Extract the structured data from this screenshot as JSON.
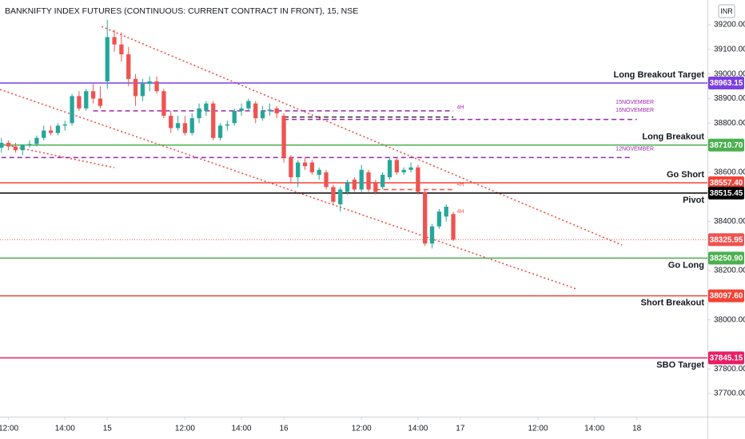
{
  "chart_data": {
    "type": "candlestick",
    "title": "BANKNIFTY INDEX FUTURES (CONTINUOUS: CURRENT CONTRACT IN FRONT), 15, NSE",
    "currency": "INR",
    "up_color": "#26a69a",
    "down_color": "#ef5350",
    "grid": false,
    "x": [
      -15,
      -14,
      -13,
      -12,
      -11,
      -10,
      -9,
      -8,
      -7,
      -6,
      -5,
      -4,
      -3,
      -2,
      -1,
      0,
      1,
      2,
      3,
      4,
      5,
      6,
      7,
      8,
      9,
      10,
      11,
      12,
      13,
      14,
      15,
      16,
      17,
      18,
      19,
      20,
      21,
      22,
      23,
      24,
      25,
      26,
      27,
      28,
      29,
      30,
      31,
      32,
      33,
      34,
      35,
      36,
      37,
      38,
      39,
      40,
      41,
      42,
      43,
      44,
      45,
      46,
      47,
      48,
      49
    ],
    "open": [
      38700,
      38720,
      38705,
      38690,
      38710,
      38715,
      38740,
      38770,
      38760,
      38790,
      38800,
      38910,
      38860,
      38930,
      38900,
      38970,
      39150,
      39120,
      39080,
      38980,
      38910,
      38960,
      38970,
      38930,
      38830,
      38780,
      38800,
      38760,
      38820,
      38850,
      38880,
      38740,
      38790,
      38800,
      38850,
      38860,
      38880,
      38820,
      38850,
      38860,
      38830,
      38660,
      38580,
      38640,
      38640,
      38590,
      38600,
      38540,
      38470,
      38520,
      38570,
      38530,
      38600,
      38560,
      38540,
      38580,
      38650,
      38600,
      38610,
      38620,
      38520,
      38310,
      38380,
      38420,
      38430
    ],
    "high": [
      38740,
      38730,
      38720,
      38715,
      38730,
      38750,
      38790,
      38790,
      38800,
      38810,
      38920,
      38930,
      38940,
      38960,
      38950,
      39220,
      39180,
      39170,
      39110,
      39000,
      38980,
      38990,
      38990,
      38940,
      38850,
      38830,
      38830,
      38840,
      38880,
      38890,
      38890,
      38800,
      38810,
      38860,
      38880,
      38900,
      38890,
      38870,
      38880,
      38870,
      38840,
      38670,
      38650,
      38660,
      38650,
      38620,
      38610,
      38550,
      38540,
      38570,
      38580,
      38630,
      38610,
      38570,
      38600,
      38660,
      38660,
      38620,
      38640,
      38630,
      38530,
      38390,
      38450,
      38470,
      38440
    ],
    "low": [
      38680,
      38690,
      38680,
      38670,
      38700,
      38705,
      38730,
      38750,
      38750,
      38770,
      38790,
      38850,
      38850,
      38880,
      38860,
      38940,
      39090,
      39050,
      38950,
      38870,
      38890,
      38930,
      38920,
      38820,
      38760,
      38770,
      38750,
      38750,
      38800,
      38830,
      38730,
      38730,
      38770,
      38790,
      38830,
      38850,
      38800,
      38810,
      38830,
      38820,
      38640,
      38560,
      38540,
      38610,
      38590,
      38570,
      38530,
      38470,
      38440,
      38510,
      38520,
      38520,
      38520,
      38510,
      38530,
      38570,
      38590,
      38590,
      38600,
      38510,
      38300,
      38290,
      38370,
      38400,
      38320
    ],
    "close": [
      38720,
      38705,
      38690,
      38710,
      38715,
      38740,
      38770,
      38760,
      38790,
      38795,
      38910,
      38860,
      38930,
      38900,
      38870,
      39150,
      39120,
      39080,
      38980,
      38910,
      38960,
      38970,
      38930,
      38830,
      38780,
      38800,
      38760,
      38820,
      38860,
      38880,
      38740,
      38790,
      38795,
      38850,
      38860,
      38890,
      38820,
      38850,
      38855,
      38840,
      38660,
      38580,
      38640,
      38625,
      38600,
      38610,
      38540,
      38480,
      38530,
      38560,
      38530,
      38610,
      38530,
      38520,
      38590,
      38650,
      38600,
      38610,
      38620,
      38520,
      38310,
      38380,
      38440,
      38460,
      38326
    ],
    "xlim": [
      -15.2,
      85
    ],
    "ylim": [
      37606,
      39301
    ],
    "xticks": [
      {
        "value": -14,
        "label": "12:00"
      },
      {
        "value": -6,
        "label": "14:00"
      },
      {
        "value": 0,
        "label": "15"
      },
      {
        "value": 11,
        "label": "12:00"
      },
      {
        "value": 19,
        "label": "14:00"
      },
      {
        "value": 25,
        "label": "16"
      },
      {
        "value": 36,
        "label": "12:00"
      },
      {
        "value": 44,
        "label": "14:00"
      },
      {
        "value": 50,
        "label": "17"
      },
      {
        "value": 61,
        "label": "12:00"
      },
      {
        "value": 69,
        "label": "14:00"
      },
      {
        "value": 75,
        "label": "18"
      }
    ],
    "yticks": [
      {
        "value": 39200,
        "label": "39200.00"
      },
      {
        "value": 39100,
        "label": "39100.00"
      },
      {
        "value": 39000,
        "label": "39000.00"
      },
      {
        "value": 38900,
        "label": "38900.00"
      },
      {
        "value": 38800,
        "label": "38800.00"
      },
      {
        "value": 38600,
        "label": "38600.00"
      },
      {
        "value": 38400,
        "label": "38400.00"
      },
      {
        "value": 38200,
        "label": "38200.00"
      },
      {
        "value": 38000,
        "label": "38000.00"
      },
      {
        "value": 37800,
        "label": "37800.00"
      },
      {
        "value": 37700,
        "label": "37700.00"
      }
    ],
    "levels": [
      {
        "name": "Long Breakout Target",
        "value": 38963.15,
        "value_label": "38963.15",
        "color": "#7b3fe4",
        "label_position": "above"
      },
      {
        "name": "Long Breakout",
        "value": 38710.7,
        "value_label": "38710.70",
        "color": "#4caf50",
        "label_position": "above"
      },
      {
        "name": "Go Short",
        "value": 38557.4,
        "value_label": "38557.40",
        "color": "#f44336",
        "label_position": "above"
      },
      {
        "name": "Pivot",
        "value": 38515.45,
        "value_label": "38515.45",
        "color": "#000000",
        "label_position": "below"
      },
      {
        "name": "Go Long",
        "value": 38250.9,
        "value_label": "38250.90",
        "color": "#4caf50",
        "label_position": "below"
      },
      {
        "name": "Short Breakout",
        "value": 38097.6,
        "value_label": "38097.60",
        "color": "#f44336",
        "label_position": "below"
      },
      {
        "name": "SBO Target",
        "value": 37845.15,
        "value_label": "37845.15",
        "color": "#e91e63",
        "label_position": "below"
      }
    ],
    "last_price": {
      "value": 38325.95,
      "value_label": "38325.95",
      "color": "#ef5350"
    },
    "dashed_levels": [
      {
        "value": 38850,
        "from": -2,
        "to": 49,
        "color": "#9c27b0"
      },
      {
        "value": 38815,
        "from": 25,
        "to": 75,
        "color": "#9c27b0"
      },
      {
        "value": 38660,
        "from": -15,
        "to": 74,
        "color": "#9c27b0"
      },
      {
        "value": 38825,
        "from": 25,
        "to": 49,
        "color": "#333333"
      },
      {
        "value": 38530,
        "from": 38,
        "to": 49,
        "color": "#ef5350"
      }
    ],
    "trend_lines": [
      {
        "points": [
          [
            -0.8,
            39193
          ],
          [
            72.9,
            38304
          ]
        ],
        "color": "#f44336"
      },
      {
        "points": [
          [
            -15.2,
            38937
          ],
          [
            66.5,
            38125
          ]
        ],
        "color": "#f44336"
      },
      {
        "points": [
          [
            -15.2,
            38716
          ],
          [
            1,
            38619
          ]
        ],
        "color": "#f44336"
      }
    ],
    "annotations": [
      {
        "text": "15NOVEMBER",
        "x": 72,
        "value": 38885,
        "color": "#9c27b0"
      },
      {
        "text": "16NOVEMBER",
        "x": 72,
        "value": 38852,
        "color": "#9c27b0"
      },
      {
        "text": "12NOVEMBER",
        "x": 72,
        "value": 38695,
        "color": "#9c27b0"
      },
      {
        "text": "4H",
        "x": 49.5,
        "value": 38863,
        "color": "#9c27b0"
      },
      {
        "text": "4H",
        "x": 49.5,
        "value": 38551,
        "color": "#ef5350"
      },
      {
        "text": "4H",
        "x": 49.5,
        "value": 38440,
        "color": "#ef5350"
      }
    ]
  }
}
